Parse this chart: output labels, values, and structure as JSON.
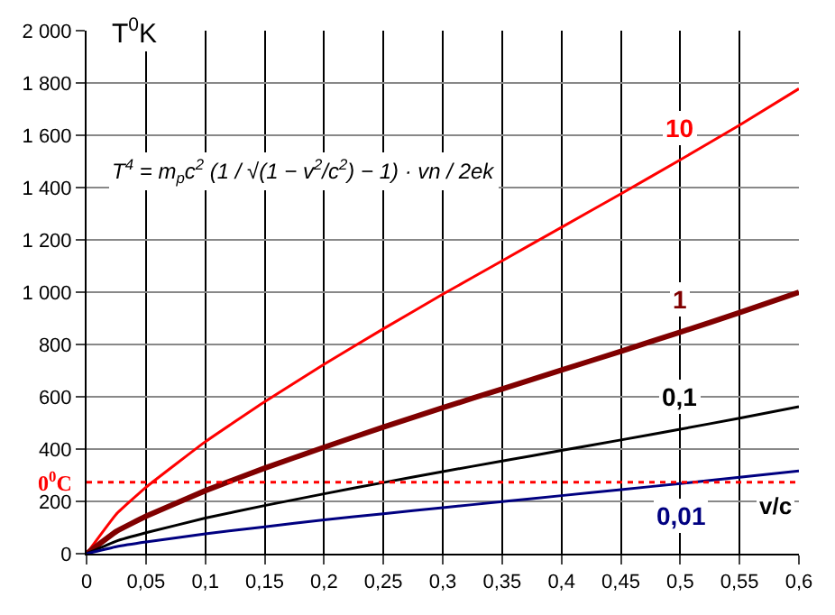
{
  "chart_data": {
    "type": "line",
    "xlabel": "v/c",
    "ylabel": "T$^{0}$K",
    "x": [
      0,
      0.025,
      0.05,
      0.1,
      0.15,
      0.2,
      0.25,
      0.3,
      0.35,
      0.4,
      0.45,
      0.5,
      0.55,
      0.6
    ],
    "series": [
      {
        "name": "10",
        "color": "#ff0000",
        "values": [
          0,
          151,
          254,
          428,
          581,
          724,
          860,
          992,
          1120,
          1248,
          1376,
          1506,
          1639,
          1778
        ]
      },
      {
        "name": "1",
        "color": "#800000",
        "values": [
          0,
          85,
          143,
          241,
          327,
          407,
          484,
          558,
          630,
          702,
          774,
          847,
          922,
          1000
        ]
      },
      {
        "name": "0,1",
        "color": "#000000",
        "values": [
          0,
          48,
          80,
          136,
          184,
          229,
          272,
          314,
          354,
          395,
          435,
          476,
          518,
          562
        ]
      },
      {
        "name": "0,01",
        "color": "#000080",
        "values": [
          0,
          27,
          45,
          76,
          103,
          129,
          153,
          176,
          199,
          222,
          245,
          268,
          292,
          316
        ]
      }
    ],
    "xlim": [
      0,
      0.6
    ],
    "xticks": [
      0,
      {
        "value": 0.05,
        "label": "0,05"
      },
      {
        "value": 0.1,
        "label": "0,1"
      },
      {
        "value": 0.15,
        "label": "0,15"
      },
      {
        "value": 0.2,
        "label": "0,2"
      },
      {
        "value": 0.25,
        "label": "0,25"
      },
      {
        "value": 0.3,
        "label": "0,3"
      },
      {
        "value": 0.35,
        "label": "0,35"
      },
      {
        "value": 0.4,
        "label": "0,4"
      },
      {
        "value": 0.45,
        "label": "0,45"
      },
      {
        "value": 0.5,
        "label": "0,5"
      },
      {
        "value": 0.55,
        "label": "0,55"
      },
      {
        "value": 0.6,
        "label": "0,6"
      }
    ],
    "ylim": [
      0,
      2000
    ],
    "yticks": [
      0,
      200,
      400,
      600,
      800,
      {
        "value": 1000,
        "label": "1 000"
      },
      {
        "value": 1200,
        "label": "1 200"
      },
      {
        "value": 1400,
        "label": "1 400"
      },
      {
        "value": 1600,
        "label": "1 600"
      },
      {
        "value": 1800,
        "label": "1 800"
      },
      {
        "value": 2000,
        "label": "2 000"
      }
    ],
    "ref_lines": [
      {
        "axis": "y",
        "value": 273,
        "label": "0$^{0}$C",
        "color": "#ff0000",
        "line_style": "dotted"
      }
    ],
    "annotations": [
      "T$^{4}$ = m$_{p}$c$^{2}$ (1 / √(1 − v$^{2}$/c$^{2}$) − 1) · vn / 2ek"
    ],
    "grid": true,
    "legend": false,
    "marker": "none",
    "line_style": "solid"
  }
}
